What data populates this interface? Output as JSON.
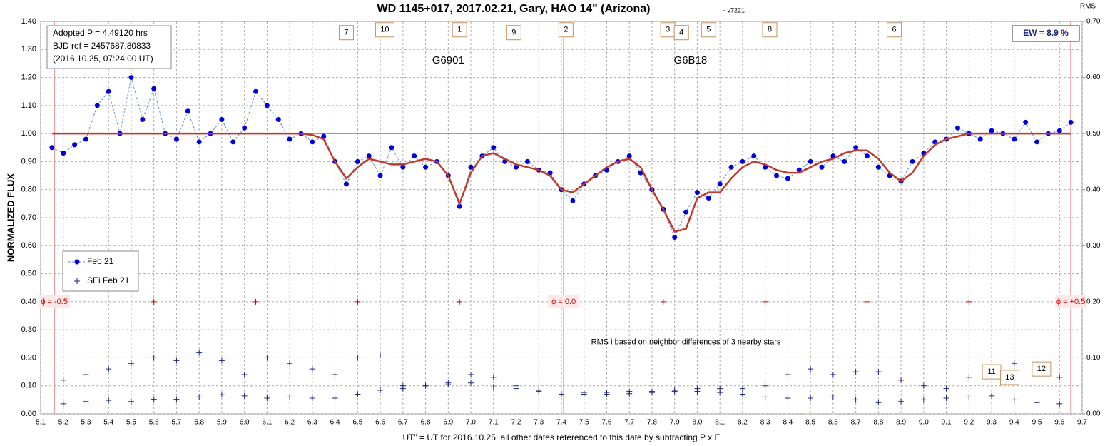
{
  "chart_data": {
    "type": "line",
    "title": "WD 1145+017, 2017.02.21, Gary, HAO 14\" (Arizona)",
    "subtitle": "- v7221",
    "y_label": "NORMALIZED FLUX",
    "y2_label": "RMS",
    "x_label": "UT\" = UT for 2016.10.25, all other dates referenced to this date by subtracting P x E",
    "info_lines": [
      "Adopted P = 4.49120  hrs",
      "BJD ref = 2457687.80833",
      "(2016.10.25,  07:24:00  UT)"
    ],
    "ew_label": "EW = 8.9 %",
    "grid": true,
    "xlim": [
      5.1,
      9.7
    ],
    "xticks": [
      5.1,
      5.2,
      5.3,
      5.4,
      5.5,
      5.6,
      5.7,
      5.8,
      5.9,
      {
        "value": 6,
        "label": "6.0"
      },
      6.1,
      6.2,
      6.3,
      6.4,
      6.5,
      6.6,
      6.7,
      6.8,
      6.9,
      {
        "value": 7,
        "label": "7.0"
      },
      7.1,
      7.2,
      7.3,
      7.4,
      7.5,
      7.6,
      7.7,
      7.8,
      7.9,
      {
        "value": 8,
        "label": "8.0"
      },
      8.1,
      8.2,
      8.3,
      8.4,
      8.5,
      8.6,
      8.7,
      8.8,
      8.9,
      {
        "value": 9,
        "label": "9.0"
      },
      9.1,
      9.2,
      9.3,
      9.4,
      9.5,
      9.6,
      9.7
    ],
    "ylim": [
      0,
      1.4
    ],
    "yticks": [
      {
        "value": 0,
        "label": "0.00"
      },
      {
        "value": 0.1,
        "label": "0.10"
      },
      {
        "value": 0.2,
        "label": "0.20"
      },
      {
        "value": 0.3,
        "label": "0.30"
      },
      {
        "value": 0.4,
        "label": "0.40"
      },
      {
        "value": 0.5,
        "label": "0.50"
      },
      {
        "value": 0.6,
        "label": "0.60"
      },
      {
        "value": 0.7,
        "label": "0.70"
      },
      {
        "value": 0.8,
        "label": "0.80"
      },
      {
        "value": 0.9,
        "label": "0.90"
      },
      {
        "value": 1,
        "label": "1.00"
      },
      {
        "value": 1.1,
        "label": "1.10"
      },
      {
        "value": 1.2,
        "label": "1.20"
      },
      {
        "value": 1.3,
        "label": "1.30"
      },
      {
        "value": 1.4,
        "label": "1.40"
      }
    ],
    "y2lim": [
      0,
      0.7
    ],
    "y2ticks": [
      {
        "value": 0,
        "label": "0.00"
      },
      {
        "value": 0.1,
        "label": "0.10"
      },
      {
        "value": 0.2,
        "label": "0.20"
      },
      {
        "value": 0.3,
        "label": "0.30"
      },
      {
        "value": 0.4,
        "label": "0.40"
      },
      {
        "value": 0.5,
        "label": "0.50"
      },
      {
        "value": 0.6,
        "label": "0.60"
      },
      {
        "value": 0.7,
        "label": "0.70"
      }
    ],
    "series": [
      {
        "name": "Feb 21",
        "color": "#0000dd",
        "marker": "dot",
        "x": [
          5.15,
          5.2,
          5.25,
          5.3,
          5.35,
          5.4,
          5.45,
          5.5,
          5.55,
          5.6,
          5.65,
          5.7,
          5.75,
          5.8,
          5.85,
          5.9,
          5.95,
          6,
          6.05,
          6.1,
          6.15,
          6.2,
          6.25,
          6.3,
          6.35,
          6.4,
          6.45,
          6.5,
          6.55,
          6.6,
          6.65,
          6.7,
          6.75,
          6.8,
          6.85,
          6.9,
          6.95,
          7,
          7.05,
          7.1,
          7.15,
          7.2,
          7.25,
          7.3,
          7.35,
          7.4,
          7.45,
          7.5,
          7.55,
          7.6,
          7.65,
          7.7,
          7.75,
          7.8,
          7.85,
          7.9,
          7.95,
          8,
          8.05,
          8.1,
          8.15,
          8.2,
          8.25,
          8.3,
          8.35,
          8.4,
          8.45,
          8.5,
          8.55,
          8.6,
          8.65,
          8.7,
          8.75,
          8.8,
          8.85,
          8.9,
          8.95,
          9,
          9.05,
          9.1,
          9.15,
          9.2,
          9.25,
          9.3,
          9.35,
          9.4,
          9.45,
          9.5,
          9.55,
          9.6,
          9.65
        ],
        "values": [
          0.95,
          0.93,
          0.96,
          0.98,
          1.1,
          1.15,
          1,
          1.2,
          1.05,
          1.16,
          1,
          0.98,
          1.08,
          0.97,
          1,
          1.05,
          0.97,
          1.02,
          1.15,
          1.1,
          1.05,
          0.98,
          1,
          0.97,
          0.99,
          0.9,
          0.82,
          0.9,
          0.92,
          0.85,
          0.95,
          0.88,
          0.92,
          0.88,
          0.9,
          0.85,
          0.74,
          0.88,
          0.92,
          0.95,
          0.9,
          0.88,
          0.9,
          0.87,
          0.86,
          0.8,
          0.76,
          0.82,
          0.85,
          0.87,
          0.9,
          0.92,
          0.86,
          0.8,
          0.73,
          0.63,
          0.72,
          0.79,
          0.77,
          0.82,
          0.88,
          0.9,
          0.92,
          0.88,
          0.85,
          0.84,
          0.87,
          0.9,
          0.88,
          0.92,
          0.9,
          0.95,
          0.92,
          0.88,
          0.85,
          0.83,
          0.9,
          0.93,
          0.97,
          0.98,
          1.02,
          1,
          0.98,
          1.01,
          1,
          0.98,
          1.04,
          0.97,
          1,
          1.01,
          1.04
        ]
      },
      {
        "color": "#c0392b",
        "marker": "fit",
        "x": [
          5.15,
          5.2,
          5.25,
          5.3,
          5.35,
          5.4,
          5.45,
          5.5,
          5.55,
          5.6,
          5.65,
          5.7,
          5.75,
          5.8,
          5.85,
          5.9,
          5.95,
          6,
          6.05,
          6.1,
          6.15,
          6.2,
          6.25,
          6.3,
          6.35,
          6.4,
          6.45,
          6.5,
          6.55,
          6.6,
          6.65,
          6.7,
          6.75,
          6.8,
          6.85,
          6.9,
          6.95,
          7,
          7.05,
          7.1,
          7.15,
          7.2,
          7.25,
          7.3,
          7.35,
          7.4,
          7.45,
          7.5,
          7.55,
          7.6,
          7.65,
          7.7,
          7.75,
          7.8,
          7.85,
          7.9,
          7.95,
          8,
          8.05,
          8.1,
          8.15,
          8.2,
          8.25,
          8.3,
          8.35,
          8.4,
          8.45,
          8.5,
          8.55,
          8.6,
          8.65,
          8.7,
          8.75,
          8.8,
          8.85,
          8.9,
          8.95,
          9,
          9.05,
          9.1,
          9.15,
          9.2,
          9.25,
          9.3,
          9.35,
          9.4,
          9.45,
          9.5,
          9.55,
          9.6,
          9.65
        ],
        "values": [
          1,
          1,
          1,
          1,
          1,
          1,
          1,
          1,
          1,
          1,
          1,
          1,
          1,
          1,
          1,
          1,
          1,
          1,
          1,
          1,
          1,
          1,
          1,
          0.995,
          0.98,
          0.9,
          0.84,
          0.88,
          0.91,
          0.9,
          0.89,
          0.89,
          0.9,
          0.91,
          0.9,
          0.85,
          0.75,
          0.86,
          0.92,
          0.93,
          0.91,
          0.89,
          0.88,
          0.87,
          0.85,
          0.8,
          0.79,
          0.82,
          0.85,
          0.88,
          0.9,
          0.91,
          0.88,
          0.8,
          0.73,
          0.65,
          0.66,
          0.77,
          0.79,
          0.79,
          0.84,
          0.88,
          0.9,
          0.89,
          0.87,
          0.86,
          0.86,
          0.88,
          0.9,
          0.91,
          0.93,
          0.94,
          0.94,
          0.91,
          0.86,
          0.83,
          0.86,
          0.92,
          0.96,
          0.98,
          0.99,
          1,
          1,
          1,
          1,
          1,
          1,
          1,
          1,
          1,
          1
        ]
      },
      {
        "name": "SEi Feb 21",
        "color": "#1a237e",
        "marker": "plus",
        "axis": "y2",
        "x": [
          5.2,
          5.3,
          5.4,
          5.5,
          5.6,
          5.7,
          5.8,
          5.9,
          6,
          6.1,
          6.2,
          6.3,
          6.4,
          6.5,
          6.6,
          6.7,
          6.8,
          6.9,
          7,
          7.1,
          7.2,
          7.3,
          7.4,
          7.5,
          7.6,
          7.7,
          7.8,
          7.9,
          8,
          8.1,
          8.2,
          8.3,
          8.4,
          8.5,
          8.6,
          8.7,
          8.8,
          8.9,
          9,
          9.1,
          9.2,
          9.3,
          9.4,
          9.5,
          9.6
        ],
        "values": [
          0.018,
          0.022,
          0.024,
          0.022,
          0.026,
          0.026,
          0.03,
          0.034,
          0.032,
          0.028,
          0.03,
          0.028,
          0.028,
          0.035,
          0.042,
          0.045,
          0.05,
          0.052,
          0.055,
          0.048,
          0.045,
          0.042,
          0.035,
          0.038,
          0.038,
          0.036,
          0.038,
          0.042,
          0.04,
          0.038,
          0.035,
          0.03,
          0.028,
          0.028,
          0.03,
          0.025,
          0.02,
          0.022,
          0.025,
          0.028,
          0.03,
          0.032,
          0.025,
          0.02,
          0.018
        ]
      },
      {
        "color": "#1a237e",
        "marker": "plus",
        "axis": "y2",
        "x": [
          5.2,
          5.3,
          5.4,
          5.5,
          5.6,
          5.7,
          5.8,
          5.9,
          6,
          6.1,
          6.2,
          6.3,
          6.4,
          6.5,
          6.6,
          6.7,
          6.8,
          6.9,
          7,
          7.1,
          7.2,
          7.3,
          7.4,
          7.5,
          7.6,
          7.7,
          7.8,
          7.9,
          8,
          8.1,
          8.2,
          8.3,
          8.4,
          8.5,
          8.6,
          8.7,
          8.8,
          8.9,
          9,
          9.1,
          9.2,
          9.3,
          9.4,
          9.5,
          9.6
        ],
        "values": [
          0.06,
          0.07,
          0.08,
          0.09,
          0.1,
          0.095,
          0.11,
          0.095,
          0.07,
          0.1,
          0.09,
          0.08,
          0.07,
          0.1,
          0.105,
          0.05,
          0.05,
          0.055,
          0.07,
          0.065,
          0.05,
          0.04,
          0.035,
          0.035,
          0.035,
          0.04,
          0.04,
          0.04,
          0.045,
          0.045,
          0.045,
          0.05,
          0.07,
          0.08,
          0.07,
          0.075,
          0.075,
          0.06,
          0.05,
          0.045,
          0.065,
          0.08,
          0.09,
          0.07,
          0.065
        ]
      }
    ],
    "baseline": 1,
    "phase_marks": {
      "x": [
        5.6,
        6.05,
        6.5,
        6.95,
        7.85,
        8.3,
        8.75,
        9.2
      ],
      "y": 0.4
    },
    "phase_lines": [
      {
        "x": 5.16,
        "label": "ϕ = -0.5"
      },
      {
        "x": 7.41,
        "label": "ϕ = 0.0"
      },
      {
        "x": 9.65,
        "label": "ϕ = +0.5"
      }
    ],
    "boxes": [
      {
        "label": "7",
        "x": 6.45,
        "y": 1.36
      },
      {
        "label": "10",
        "x": 6.62,
        "y": 1.37
      },
      {
        "label": "1",
        "x": 6.95,
        "y": 1.37
      },
      {
        "label": "9",
        "x": 7.19,
        "y": 1.36
      },
      {
        "label": "2",
        "x": 7.42,
        "y": 1.37
      },
      {
        "label": "3",
        "x": 7.87,
        "y": 1.37
      },
      {
        "label": "4",
        "x": 7.93,
        "y": 1.36
      },
      {
        "label": "5",
        "x": 8.05,
        "y": 1.37
      },
      {
        "label": "8",
        "x": 8.32,
        "y": 1.37
      },
      {
        "label": "6",
        "x": 8.87,
        "y": 1.37
      },
      {
        "label": "11",
        "x": 9.3,
        "y": 0.15
      },
      {
        "label": "13",
        "x": 9.38,
        "y": 0.13
      },
      {
        "label": "12",
        "x": 9.52,
        "y": 0.16
      }
    ],
    "annotations": [
      {
        "text": "G6901",
        "x": 6.9,
        "y": 1.26
      },
      {
        "text": "G6B18",
        "x": 7.97,
        "y": 1.26
      },
      {
        "text": "RMS i based on neighbor differences of 3 nearby stars",
        "x": 7.95,
        "y": 0.255
      }
    ]
  }
}
